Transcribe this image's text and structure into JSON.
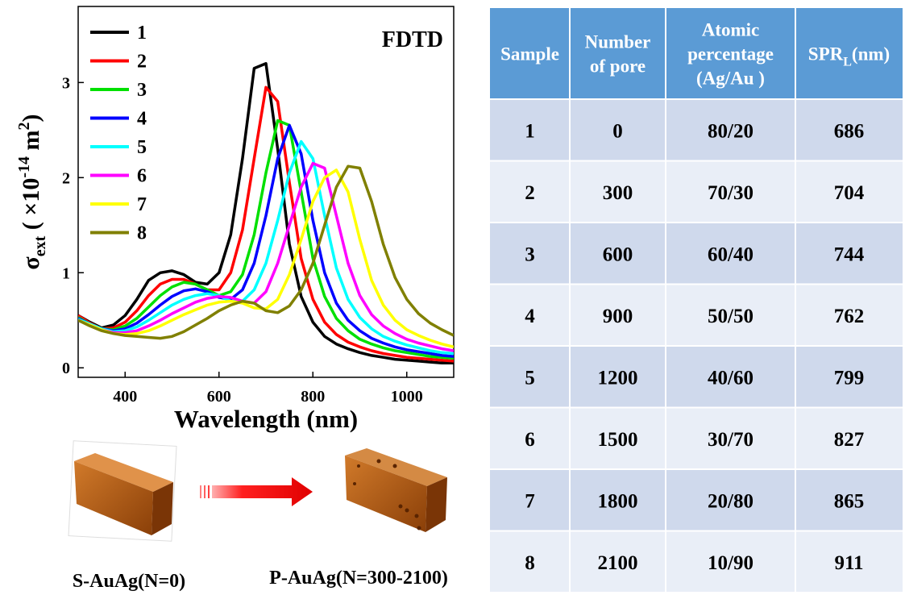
{
  "chart_data": {
    "type": "line",
    "annotation": "FDTD",
    "x_label": "Wavelength (nm)",
    "y_label": {
      "main": "σ",
      "sub": "ext",
      "pre": " ( ×10",
      "sup1": "-14",
      "mid": " m",
      "sup2": "2",
      "post": ")"
    },
    "xlim": [
      300,
      1100
    ],
    "xticks": [
      400,
      600,
      800,
      1000
    ],
    "ylim": [
      -0.1,
      3.8
    ],
    "yticks": [
      0,
      1,
      2,
      3
    ],
    "legend": "upper left",
    "x": [
      300,
      325,
      350,
      375,
      400,
      425,
      450,
      475,
      500,
      525,
      550,
      575,
      600,
      625,
      650,
      675,
      700,
      725,
      750,
      775,
      800,
      825,
      850,
      875,
      900,
      925,
      950,
      975,
      1000,
      1025,
      1050,
      1075,
      1100
    ],
    "series": [
      {
        "name": "1",
        "color": "#000000",
        "values": [
          0.55,
          0.48,
          0.42,
          0.45,
          0.55,
          0.72,
          0.92,
          1.0,
          1.02,
          0.98,
          0.9,
          0.88,
          1.0,
          1.4,
          2.2,
          3.15,
          3.2,
          2.3,
          1.3,
          0.75,
          0.48,
          0.33,
          0.25,
          0.2,
          0.16,
          0.13,
          0.11,
          0.09,
          0.08,
          0.07,
          0.06,
          0.05,
          0.05
        ]
      },
      {
        "name": "2",
        "color": "#ff0000",
        "values": [
          0.55,
          0.47,
          0.41,
          0.42,
          0.48,
          0.6,
          0.76,
          0.88,
          0.93,
          0.93,
          0.88,
          0.82,
          0.82,
          1.0,
          1.45,
          2.2,
          2.95,
          2.8,
          1.95,
          1.15,
          0.72,
          0.48,
          0.35,
          0.27,
          0.22,
          0.18,
          0.15,
          0.13,
          0.11,
          0.1,
          0.09,
          0.08,
          0.07
        ]
      },
      {
        "name": "3",
        "color": "#00e000",
        "values": [
          0.53,
          0.46,
          0.41,
          0.4,
          0.44,
          0.52,
          0.64,
          0.76,
          0.85,
          0.9,
          0.88,
          0.82,
          0.76,
          0.8,
          0.98,
          1.4,
          2.05,
          2.6,
          2.55,
          1.85,
          1.15,
          0.75,
          0.52,
          0.39,
          0.3,
          0.25,
          0.21,
          0.18,
          0.16,
          0.14,
          0.12,
          0.11,
          0.1
        ]
      },
      {
        "name": "4",
        "color": "#0000ff",
        "values": [
          0.52,
          0.46,
          0.41,
          0.39,
          0.41,
          0.47,
          0.56,
          0.66,
          0.75,
          0.81,
          0.83,
          0.8,
          0.74,
          0.72,
          0.82,
          1.1,
          1.6,
          2.2,
          2.55,
          2.25,
          1.55,
          1.0,
          0.68,
          0.5,
          0.39,
          0.31,
          0.26,
          0.22,
          0.19,
          0.17,
          0.15,
          0.13,
          0.12
        ]
      },
      {
        "name": "5",
        "color": "#00ffff",
        "values": [
          0.51,
          0.46,
          0.41,
          0.38,
          0.39,
          0.43,
          0.5,
          0.58,
          0.66,
          0.72,
          0.76,
          0.78,
          0.76,
          0.7,
          0.7,
          0.82,
          1.1,
          1.55,
          2.05,
          2.38,
          2.2,
          1.6,
          1.05,
          0.72,
          0.53,
          0.41,
          0.33,
          0.28,
          0.24,
          0.21,
          0.18,
          0.16,
          0.15
        ]
      },
      {
        "name": "6",
        "color": "#ff00ff",
        "values": [
          0.5,
          0.45,
          0.4,
          0.37,
          0.37,
          0.39,
          0.44,
          0.5,
          0.57,
          0.63,
          0.69,
          0.73,
          0.75,
          0.74,
          0.7,
          0.68,
          0.8,
          1.1,
          1.5,
          1.9,
          2.15,
          2.1,
          1.6,
          1.1,
          0.76,
          0.56,
          0.44,
          0.36,
          0.3,
          0.26,
          0.23,
          0.2,
          0.18
        ]
      },
      {
        "name": "7",
        "color": "#ffff00",
        "values": [
          0.5,
          0.45,
          0.4,
          0.36,
          0.35,
          0.36,
          0.39,
          0.44,
          0.5,
          0.56,
          0.61,
          0.66,
          0.69,
          0.7,
          0.68,
          0.63,
          0.62,
          0.72,
          0.98,
          1.35,
          1.75,
          2.0,
          2.08,
          1.85,
          1.35,
          0.92,
          0.66,
          0.5,
          0.4,
          0.34,
          0.29,
          0.25,
          0.22
        ]
      },
      {
        "name": "8",
        "color": "#808000",
        "values": [
          0.5,
          0.44,
          0.39,
          0.36,
          0.34,
          0.33,
          0.32,
          0.31,
          0.33,
          0.38,
          0.45,
          0.52,
          0.6,
          0.66,
          0.7,
          0.68,
          0.6,
          0.58,
          0.65,
          0.82,
          1.1,
          1.5,
          1.9,
          2.12,
          2.1,
          1.75,
          1.3,
          0.95,
          0.72,
          0.57,
          0.47,
          0.4,
          0.34
        ]
      }
    ]
  },
  "figure": {
    "left_label": "S-AuAg(N=0)",
    "right_label": "P-AuAg(N=300-2100)"
  },
  "table": {
    "headers": [
      [
        "Sample"
      ],
      [
        "Number",
        "of pore"
      ],
      [
        "Atomic",
        "percentage",
        "(Ag/Au )"
      ],
      {
        "text": "SPR",
        "sub": "L",
        "unit": "(nm)"
      }
    ],
    "rows": [
      [
        "1",
        "0",
        "80/20",
        "686"
      ],
      [
        "2",
        "300",
        "70/30",
        "704"
      ],
      [
        "3",
        "600",
        "60/40",
        "744"
      ],
      [
        "4",
        "900",
        "50/50",
        "762"
      ],
      [
        "5",
        "1200",
        "40/60",
        "799"
      ],
      [
        "6",
        "1500",
        "30/70",
        "827"
      ],
      [
        "7",
        "1800",
        "20/80",
        "865"
      ],
      [
        "8",
        "2100",
        "10/90",
        "911"
      ]
    ]
  }
}
